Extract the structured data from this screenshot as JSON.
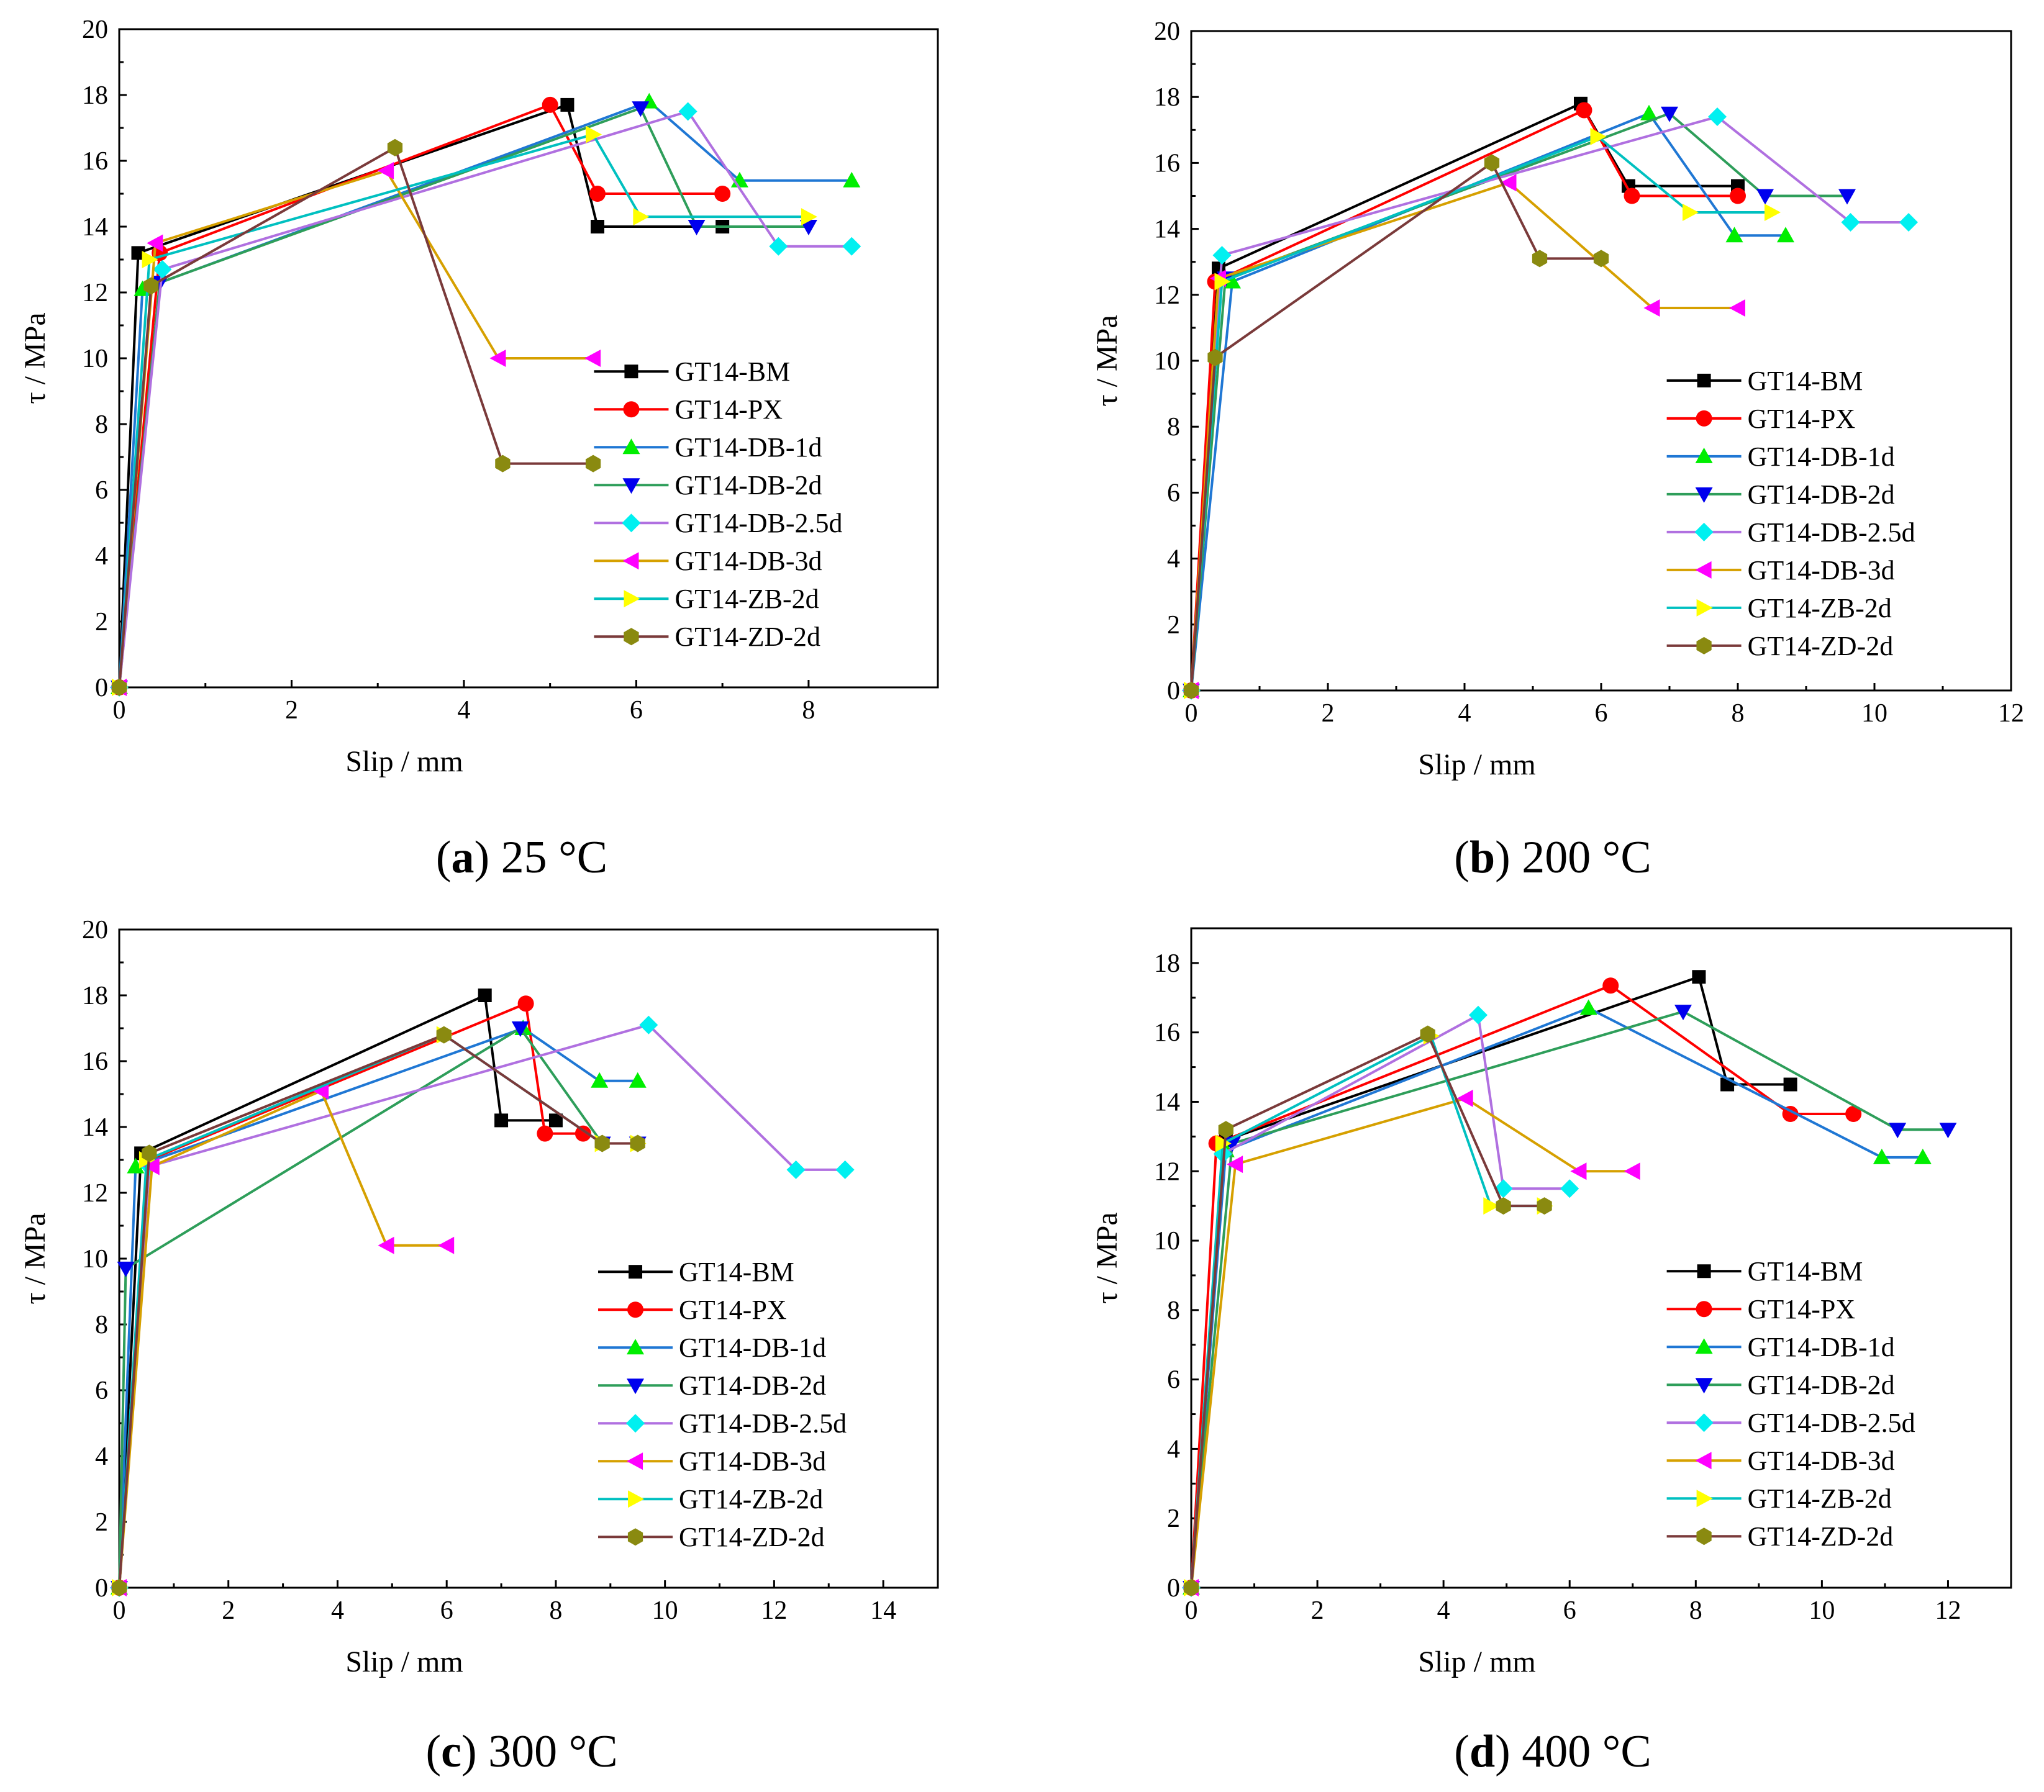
{
  "legend_series": [
    "GT14-BM",
    "GT14-PX",
    "GT14-DB-1d",
    "GT14-DB-2d",
    "GT14-DB-2.5d",
    "GT14-DB-3d",
    "GT14-ZB-2d",
    "GT14-ZD-2d"
  ],
  "series_styles": [
    {
      "line": "#000000",
      "marker": "#000000",
      "shape": "square"
    },
    {
      "line": "#ff0000",
      "marker": "#ff0000",
      "shape": "circle"
    },
    {
      "line": "#1f77d4",
      "marker": "#00ee00",
      "shape": "triangle-up"
    },
    {
      "line": "#2e9e5a",
      "marker": "#0000ee",
      "shape": "triangle-down"
    },
    {
      "line": "#b070e0",
      "marker": "#00f0f0",
      "shape": "diamond"
    },
    {
      "line": "#d6a000",
      "marker": "#ff00ff",
      "shape": "triangle-left"
    },
    {
      "line": "#00c0c0",
      "marker": "#ffff00",
      "shape": "triangle-right"
    },
    {
      "line": "#7a3a3a",
      "marker": "#8a8a10",
      "shape": "hexagon"
    }
  ],
  "chart_data": [
    {
      "type": "line",
      "panel": "a",
      "caption_letter": "a",
      "caption_text": "25 °C",
      "xlabel": "Slip / mm",
      "ylabel": "τ / MPa",
      "xlim": [
        0,
        9.5
      ],
      "ylim": [
        0,
        20
      ],
      "xticks": [
        0,
        2,
        4,
        6,
        8
      ],
      "yticks": [
        0,
        2,
        4,
        6,
        8,
        10,
        12,
        14,
        16,
        18,
        20
      ],
      "legend_position": "lower-right",
      "series": [
        {
          "name": "GT14-BM",
          "points": [
            [
              0,
              0
            ],
            [
              0.22,
              13.2
            ],
            [
              5.2,
              17.7
            ],
            [
              5.55,
              14.0
            ],
            [
              7.0,
              14.0
            ]
          ]
        },
        {
          "name": "GT14-PX",
          "points": [
            [
              0,
              0
            ],
            [
              0.47,
              13.2
            ],
            [
              5.0,
              17.7
            ],
            [
              5.55,
              15.0
            ],
            [
              7.0,
              15.0
            ]
          ]
        },
        {
          "name": "GT14-DB-1d",
          "points": [
            [
              0,
              0
            ],
            [
              0.27,
              12.1
            ],
            [
              6.15,
              17.8
            ],
            [
              7.2,
              15.4
            ],
            [
              8.5,
              15.4
            ]
          ]
        },
        {
          "name": "GT14-DB-2d",
          "points": [
            [
              0,
              0
            ],
            [
              0.47,
              12.3
            ],
            [
              6.05,
              17.6
            ],
            [
              6.7,
              14.0
            ],
            [
              8.0,
              14.0
            ]
          ]
        },
        {
          "name": "GT14-DB-2.5d",
          "points": [
            [
              0,
              0
            ],
            [
              0.5,
              12.7
            ],
            [
              6.6,
              17.5
            ],
            [
              7.65,
              13.4
            ],
            [
              8.5,
              13.4
            ]
          ]
        },
        {
          "name": "GT14-DB-3d",
          "points": [
            [
              0,
              0
            ],
            [
              0.42,
              13.5
            ],
            [
              3.1,
              15.7
            ],
            [
              4.4,
              10.0
            ],
            [
              5.5,
              10.0
            ]
          ]
        },
        {
          "name": "GT14-ZB-2d",
          "points": [
            [
              0,
              0
            ],
            [
              0.35,
              13.0
            ],
            [
              5.5,
              16.8
            ],
            [
              6.05,
              14.3
            ],
            [
              8.0,
              14.3
            ]
          ]
        },
        {
          "name": "GT14-ZD-2d",
          "points": [
            [
              0,
              0
            ],
            [
              0.37,
              12.2
            ],
            [
              3.2,
              16.4
            ],
            [
              4.45,
              6.8
            ],
            [
              5.5,
              6.8
            ]
          ]
        }
      ]
    },
    {
      "type": "line",
      "panel": "b",
      "caption_letter": "b",
      "caption_text": "200 °C",
      "xlabel": "Slip / mm",
      "ylabel": "τ / MPa",
      "xlim": [
        0,
        12
      ],
      "ylim": [
        0,
        20
      ],
      "xticks": [
        0,
        2,
        4,
        6,
        8,
        10,
        12
      ],
      "yticks": [
        0,
        2,
        4,
        6,
        8,
        10,
        12,
        14,
        16,
        18,
        20
      ],
      "legend_position": "lower-right",
      "series": [
        {
          "name": "GT14-BM",
          "points": [
            [
              0,
              0
            ],
            [
              0.4,
              12.8
            ],
            [
              5.7,
              17.8
            ],
            [
              6.4,
              15.3
            ],
            [
              8.0,
              15.3
            ]
          ]
        },
        {
          "name": "GT14-PX",
          "points": [
            [
              0,
              0
            ],
            [
              0.35,
              12.4
            ],
            [
              5.75,
              17.6
            ],
            [
              6.45,
              15.0
            ],
            [
              8.0,
              15.0
            ]
          ]
        },
        {
          "name": "GT14-DB-1d",
          "points": [
            [
              0,
              0
            ],
            [
              0.6,
              12.4
            ],
            [
              6.7,
              17.5
            ],
            [
              7.95,
              13.8
            ],
            [
              8.7,
              13.8
            ]
          ]
        },
        {
          "name": "GT14-DB-2d",
          "points": [
            [
              0,
              0
            ],
            [
              0.5,
              12.5
            ],
            [
              7.0,
              17.5
            ],
            [
              8.4,
              15.0
            ],
            [
              9.6,
              15.0
            ]
          ]
        },
        {
          "name": "GT14-DB-2.5d",
          "points": [
            [
              0,
              0
            ],
            [
              0.45,
              13.2
            ],
            [
              7.7,
              17.4
            ],
            [
              9.65,
              14.2
            ],
            [
              10.5,
              14.2
            ]
          ]
        },
        {
          "name": "GT14-DB-3d",
          "points": [
            [
              0,
              0
            ],
            [
              0.4,
              12.5
            ],
            [
              4.65,
              15.4
            ],
            [
              6.75,
              11.6
            ],
            [
              8.0,
              11.6
            ]
          ]
        },
        {
          "name": "GT14-ZB-2d",
          "points": [
            [
              0,
              0
            ],
            [
              0.45,
              12.4
            ],
            [
              5.95,
              16.8
            ],
            [
              7.3,
              14.5
            ],
            [
              8.5,
              14.5
            ]
          ]
        },
        {
          "name": "GT14-ZD-2d",
          "points": [
            [
              0,
              0
            ],
            [
              0.35,
              10.1
            ],
            [
              4.4,
              16.0
            ],
            [
              5.1,
              13.1
            ],
            [
              6.0,
              13.1
            ]
          ]
        }
      ]
    },
    {
      "type": "line",
      "panel": "c",
      "caption_letter": "c",
      "caption_text": "300 °C",
      "xlabel": "Slip / mm",
      "ylabel": "τ / MPa",
      "xlim": [
        0,
        15
      ],
      "ylim": [
        0,
        20
      ],
      "xticks": [
        0,
        2,
        4,
        6,
        8,
        10,
        12,
        14
      ],
      "yticks": [
        0,
        2,
        4,
        6,
        8,
        10,
        12,
        14,
        16,
        18,
        20
      ],
      "legend_position": "lower-right",
      "series": [
        {
          "name": "GT14-BM",
          "points": [
            [
              0,
              0
            ],
            [
              0.4,
              13.2
            ],
            [
              6.7,
              18.0
            ],
            [
              7.0,
              14.2
            ],
            [
              8.0,
              14.2
            ]
          ]
        },
        {
          "name": "GT14-PX",
          "points": [
            [
              0,
              0
            ],
            [
              0.55,
              13.0
            ],
            [
              7.45,
              17.75
            ],
            [
              7.8,
              13.8
            ],
            [
              8.5,
              13.8
            ]
          ]
        },
        {
          "name": "GT14-DB-1d",
          "points": [
            [
              0,
              0
            ],
            [
              0.3,
              12.8
            ],
            [
              7.4,
              17.0
            ],
            [
              8.8,
              15.4
            ],
            [
              9.5,
              15.4
            ]
          ]
        },
        {
          "name": "GT14-DB-2d",
          "points": [
            [
              0,
              0
            ],
            [
              0.12,
              9.7
            ],
            [
              7.35,
              17.0
            ],
            [
              8.85,
              13.5
            ],
            [
              9.5,
              13.5
            ]
          ]
        },
        {
          "name": "GT14-DB-2.5d",
          "points": [
            [
              0,
              0
            ],
            [
              0.55,
              12.8
            ],
            [
              9.7,
              17.1
            ],
            [
              12.4,
              12.7
            ],
            [
              13.3,
              12.7
            ]
          ]
        },
        {
          "name": "GT14-DB-3d",
          "points": [
            [
              0,
              0
            ],
            [
              0.6,
              12.8
            ],
            [
              3.7,
              15.1
            ],
            [
              4.9,
              10.4
            ],
            [
              6.0,
              10.4
            ]
          ]
        },
        {
          "name": "GT14-ZB-2d",
          "points": [
            [
              0,
              0
            ],
            [
              0.5,
              13.0
            ],
            [
              5.95,
              16.8
            ],
            [
              8.85,
              13.5
            ],
            [
              9.5,
              13.5
            ]
          ]
        },
        {
          "name": "GT14-ZD-2d",
          "points": [
            [
              0,
              0
            ],
            [
              0.55,
              13.2
            ],
            [
              5.95,
              16.8
            ],
            [
              8.85,
              13.5
            ],
            [
              9.5,
              13.5
            ]
          ]
        }
      ]
    },
    {
      "type": "line",
      "panel": "d",
      "caption_letter": "d",
      "caption_text": "400 °C",
      "xlabel": "Slip / mm",
      "ylabel": "τ / MPa",
      "xlim": [
        0,
        13
      ],
      "ylim": [
        0,
        19
      ],
      "xticks": [
        0,
        2,
        4,
        6,
        8,
        10,
        12
      ],
      "yticks": [
        0,
        2,
        4,
        6,
        8,
        10,
        12,
        14,
        16,
        18
      ],
      "legend_position": "lower-right",
      "series": [
        {
          "name": "GT14-BM",
          "points": [
            [
              0,
              0
            ],
            [
              0.55,
              12.9
            ],
            [
              8.05,
              17.6
            ],
            [
              8.5,
              14.5
            ],
            [
              9.5,
              14.5
            ]
          ]
        },
        {
          "name": "GT14-PX",
          "points": [
            [
              0,
              0
            ],
            [
              0.4,
              12.8
            ],
            [
              6.65,
              17.35
            ],
            [
              9.5,
              13.65
            ],
            [
              10.5,
              13.65
            ]
          ]
        },
        {
          "name": "GT14-DB-1d",
          "points": [
            [
              0,
              0
            ],
            [
              0.55,
              12.6
            ],
            [
              6.3,
              16.7
            ],
            [
              10.95,
              12.4
            ],
            [
              11.6,
              12.4
            ]
          ]
        },
        {
          "name": "GT14-DB-2d",
          "points": [
            [
              0,
              0
            ],
            [
              0.65,
              12.8
            ],
            [
              7.8,
              16.6
            ],
            [
              11.2,
              13.2
            ],
            [
              12.0,
              13.2
            ]
          ]
        },
        {
          "name": "GT14-DB-2.5d",
          "points": [
            [
              0,
              0
            ],
            [
              0.5,
              12.5
            ],
            [
              4.55,
              16.5
            ],
            [
              4.95,
              11.5
            ],
            [
              6.0,
              11.5
            ]
          ]
        },
        {
          "name": "GT14-DB-3d",
          "points": [
            [
              0,
              0
            ],
            [
              0.7,
              12.2
            ],
            [
              4.35,
              14.1
            ],
            [
              6.15,
              12.0
            ],
            [
              7.0,
              12.0
            ]
          ]
        },
        {
          "name": "GT14-ZB-2d",
          "points": [
            [
              0,
              0
            ],
            [
              0.5,
              12.8
            ],
            [
              3.8,
              15.9
            ],
            [
              4.75,
              11.0
            ],
            [
              5.6,
              11.0
            ]
          ]
        },
        {
          "name": "GT14-ZD-2d",
          "points": [
            [
              0,
              0
            ],
            [
              0.55,
              13.2
            ],
            [
              3.75,
              15.95
            ],
            [
              4.95,
              11.0
            ],
            [
              5.6,
              11.0
            ]
          ]
        }
      ]
    }
  ]
}
